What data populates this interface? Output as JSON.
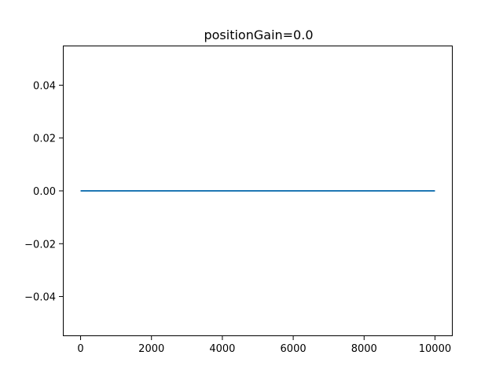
{
  "chart_data": {
    "type": "line",
    "title": "positionGain=0.0",
    "xlabel": "",
    "ylabel": "",
    "xlim": [
      -500,
      10500
    ],
    "ylim": [
      -0.055,
      0.055
    ],
    "x_ticks": [
      0,
      2000,
      4000,
      6000,
      8000,
      10000
    ],
    "x_tick_labels": [
      "0",
      "2000",
      "4000",
      "6000",
      "8000",
      "10000"
    ],
    "y_ticks": [
      0.04,
      0.02,
      0.0,
      -0.02,
      -0.04
    ],
    "y_tick_labels": [
      "0.04",
      "0.02",
      "0.00",
      "−0.02",
      "−0.04"
    ],
    "grid": false,
    "legend": "none",
    "series": [
      {
        "color": "#1f77b4",
        "x": [
          0,
          10000
        ],
        "y": [
          0.0,
          0.0
        ]
      }
    ]
  }
}
